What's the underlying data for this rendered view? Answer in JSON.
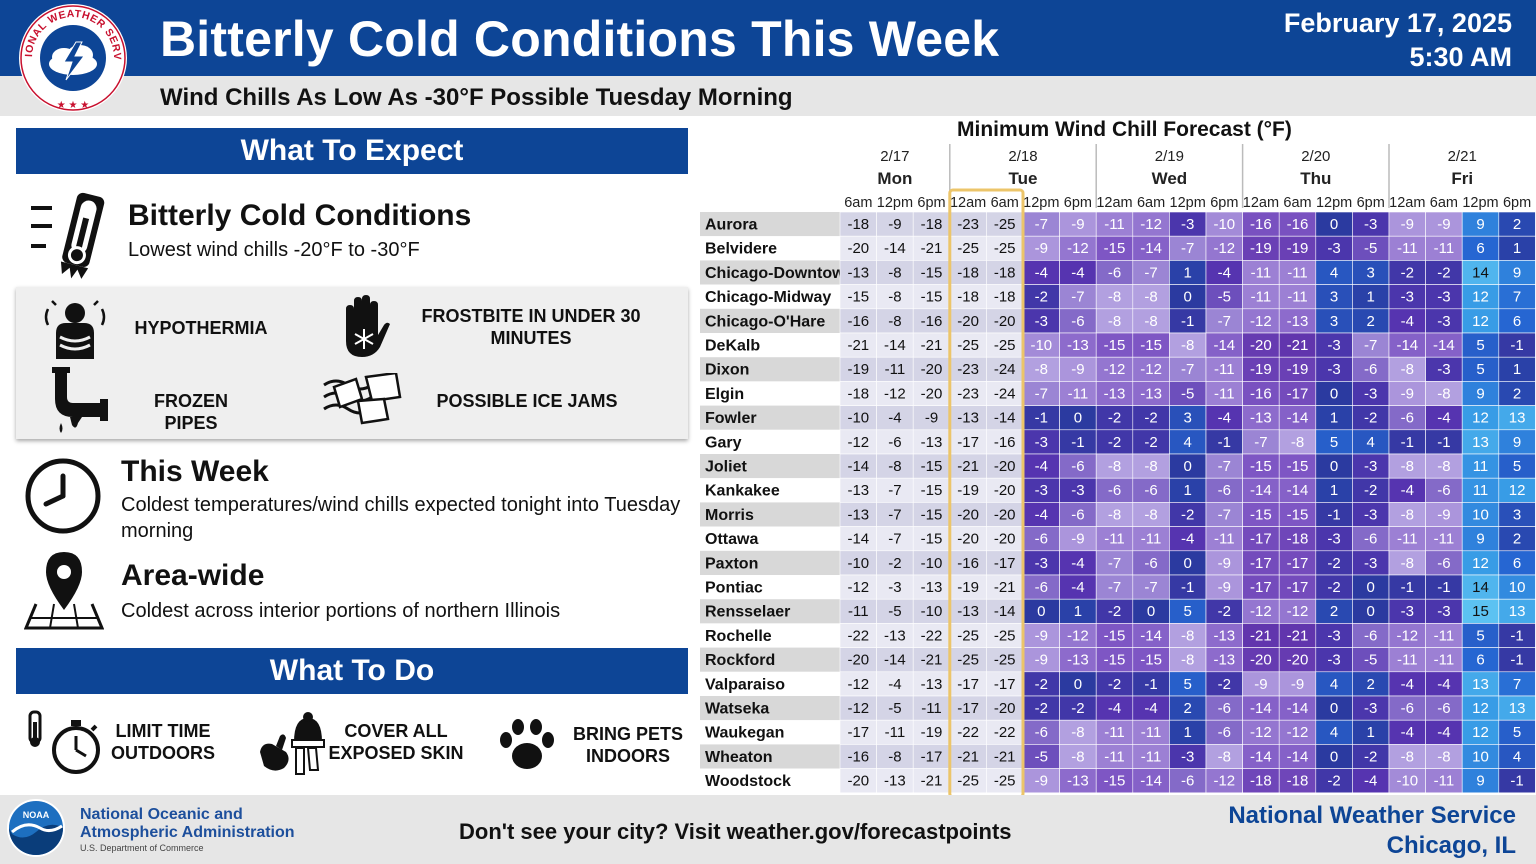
{
  "header": {
    "logo_text": "NATIONAL WEATHER SERVICE",
    "title": "Bitterly Cold Conditions This Week",
    "date": "February 17, 2025",
    "time": "5:30 AM",
    "subtitle": "Wind Chills As Low As -30°F Possible Tuesday Morning"
  },
  "expect": {
    "heading": "What To Expect",
    "main_title": "Bitterly Cold Conditions",
    "main_text": "Lowest wind chills -20°F to -30°F",
    "hazards": [
      {
        "label": "HYPOTHERMIA",
        "icon": "hypothermia-icon"
      },
      {
        "label": "FROSTBITE IN UNDER 30 MINUTES",
        "icon": "frostbite-hand-icon"
      },
      {
        "label": "FROZEN PIPES",
        "icon": "frozen-pipe-icon"
      },
      {
        "label": "POSSIBLE ICE JAMS",
        "icon": "ice-jam-icon"
      }
    ],
    "week_title": "This Week",
    "week_text": "Coldest temperatures/wind chills expected tonight into Tuesday morning",
    "area_title": "Area-wide",
    "area_text": "Coldest across interior portions of northern Illinois"
  },
  "todo": {
    "heading": "What To Do",
    "items": [
      {
        "label": "LIMIT TIME OUTDOORS",
        "icon": "stopwatch-icon"
      },
      {
        "label": "COVER ALL EXPOSED SKIN",
        "icon": "winter-clothing-icon"
      },
      {
        "label": "BRING PETS INDOORS",
        "icon": "paw-icon"
      }
    ]
  },
  "footer": {
    "noaa_line1": "National Oceanic and",
    "noaa_line2": "Atmospheric Administration",
    "noaa_sub": "U.S. Department of Commerce",
    "link_text": "Don't see your city? Visit weather.gov/forecastpoints",
    "office_line1": "National Weather Service",
    "office_line2": "Chicago, IL"
  },
  "colors": {
    "nws_blue": "#0d4596",
    "highlight": "#ecc56a"
  },
  "chart_data": {
    "type": "table",
    "title": "Minimum Wind Chill Forecast (°F)",
    "days": [
      {
        "date": "2/17",
        "day": "Mon",
        "times": [
          "6am",
          "12pm",
          "6pm"
        ]
      },
      {
        "date": "2/18",
        "day": "Tue",
        "times": [
          "12am",
          "6am",
          "12pm",
          "6pm"
        ]
      },
      {
        "date": "2/19",
        "day": "Wed",
        "times": [
          "12am",
          "6am",
          "12pm",
          "6pm"
        ]
      },
      {
        "date": "2/20",
        "day": "Thu",
        "times": [
          "12am",
          "6am",
          "12pm",
          "6pm"
        ]
      },
      {
        "date": "2/21",
        "day": "Fri",
        "times": [
          "12am",
          "6am",
          "12pm",
          "6pm"
        ]
      }
    ],
    "highlighted_columns": [
      "Tue 12am",
      "Tue 6am"
    ],
    "rows": [
      {
        "city": "Aurora",
        "values": [
          -18,
          -9,
          -18,
          -23,
          -25,
          -7,
          -9,
          -11,
          -12,
          -3,
          -10,
          -16,
          -16,
          0,
          -3,
          -9,
          -9,
          9,
          2
        ]
      },
      {
        "city": "Belvidere",
        "values": [
          -20,
          -14,
          -21,
          -25,
          -25,
          -9,
          -12,
          -15,
          -14,
          -7,
          -12,
          -19,
          -19,
          -3,
          -5,
          -11,
          -11,
          6,
          1
        ]
      },
      {
        "city": "Chicago-Downtown",
        "values": [
          -13,
          -8,
          -15,
          -18,
          -18,
          -4,
          -4,
          -6,
          -7,
          1,
          -4,
          -11,
          -11,
          4,
          3,
          -2,
          -2,
          14,
          9
        ]
      },
      {
        "city": "Chicago-Midway",
        "values": [
          -15,
          -8,
          -15,
          -18,
          -18,
          -2,
          -7,
          -8,
          -8,
          0,
          -5,
          -11,
          -11,
          3,
          1,
          -3,
          -3,
          12,
          7
        ]
      },
      {
        "city": "Chicago-O'Hare",
        "values": [
          -16,
          -8,
          -16,
          -20,
          -20,
          -3,
          -6,
          -8,
          -8,
          -1,
          -7,
          -12,
          -13,
          3,
          2,
          -4,
          -3,
          12,
          6
        ]
      },
      {
        "city": "DeKalb",
        "values": [
          -21,
          -14,
          -21,
          -25,
          -25,
          -10,
          -13,
          -15,
          -15,
          -8,
          -14,
          -20,
          -21,
          -3,
          -7,
          -14,
          -14,
          5,
          -1
        ]
      },
      {
        "city": "Dixon",
        "values": [
          -19,
          -11,
          -20,
          -23,
          -24,
          -8,
          -9,
          -12,
          -12,
          -7,
          -11,
          -19,
          -19,
          -3,
          -6,
          -8,
          -3,
          5,
          1
        ]
      },
      {
        "city": "Elgin",
        "values": [
          -18,
          -12,
          -20,
          -23,
          -24,
          -7,
          -11,
          -13,
          -13,
          -5,
          -11,
          -16,
          -17,
          0,
          -3,
          -9,
          -8,
          9,
          2
        ]
      },
      {
        "city": "Fowler",
        "values": [
          -10,
          -4,
          -9,
          -13,
          -14,
          -1,
          0,
          -2,
          -2,
          3,
          -4,
          -13,
          -14,
          1,
          -2,
          -6,
          -4,
          12,
          13
        ]
      },
      {
        "city": "Gary",
        "values": [
          -12,
          -6,
          -13,
          -17,
          -16,
          -3,
          -1,
          -2,
          -2,
          4,
          -1,
          -7,
          -8,
          5,
          4,
          -1,
          -1,
          13,
          9
        ]
      },
      {
        "city": "Joliet",
        "values": [
          -14,
          -8,
          -15,
          -21,
          -20,
          -4,
          -6,
          -8,
          -8,
          0,
          -7,
          -15,
          -15,
          0,
          -3,
          -8,
          -8,
          11,
          5
        ]
      },
      {
        "city": "Kankakee",
        "values": [
          -13,
          -7,
          -15,
          -19,
          -20,
          -3,
          -3,
          -6,
          -6,
          1,
          -6,
          -14,
          -14,
          1,
          -2,
          -4,
          -6,
          11,
          12
        ]
      },
      {
        "city": "Morris",
        "values": [
          -13,
          -7,
          -15,
          -20,
          -20,
          -4,
          -6,
          -8,
          -8,
          -2,
          -7,
          -15,
          -15,
          -1,
          -3,
          -8,
          -9,
          10,
          3
        ]
      },
      {
        "city": "Ottawa",
        "values": [
          -14,
          -7,
          -15,
          -20,
          -20,
          -6,
          -9,
          -11,
          -11,
          -4,
          -11,
          -17,
          -18,
          -3,
          -6,
          -11,
          -11,
          9,
          2
        ]
      },
      {
        "city": "Paxton",
        "values": [
          -10,
          -2,
          -10,
          -16,
          -17,
          -3,
          -4,
          -7,
          -6,
          0,
          -9,
          -17,
          -17,
          -2,
          -3,
          -8,
          -6,
          12,
          6
        ]
      },
      {
        "city": "Pontiac",
        "values": [
          -12,
          -3,
          -13,
          -19,
          -21,
          -6,
          -4,
          -7,
          -7,
          -1,
          -9,
          -17,
          -17,
          -2,
          0,
          -1,
          -1,
          14,
          10
        ]
      },
      {
        "city": "Rensselaer",
        "values": [
          -11,
          -5,
          -10,
          -13,
          -14,
          0,
          1,
          -2,
          0,
          5,
          -2,
          -12,
          -12,
          2,
          0,
          -3,
          -3,
          15,
          13
        ]
      },
      {
        "city": "Rochelle",
        "values": [
          -22,
          -13,
          -22,
          -25,
          -25,
          -9,
          -12,
          -15,
          -14,
          -8,
          -13,
          -21,
          -21,
          -3,
          -6,
          -12,
          -11,
          5,
          -1
        ]
      },
      {
        "city": "Rockford",
        "values": [
          -20,
          -14,
          -21,
          -25,
          -25,
          -9,
          -13,
          -15,
          -15,
          -8,
          -13,
          -20,
          -20,
          -3,
          -5,
          -11,
          -11,
          6,
          -1
        ]
      },
      {
        "city": "Valparaiso",
        "values": [
          -12,
          -4,
          -13,
          -17,
          -17,
          -2,
          0,
          -2,
          -1,
          5,
          -2,
          -9,
          -9,
          4,
          2,
          -4,
          -4,
          13,
          7
        ]
      },
      {
        "city": "Watseka",
        "values": [
          -12,
          -5,
          -11,
          -17,
          -20,
          -2,
          -2,
          -4,
          -4,
          2,
          -6,
          -14,
          -14,
          0,
          -3,
          -6,
          -6,
          12,
          13
        ]
      },
      {
        "city": "Waukegan",
        "values": [
          -17,
          -11,
          -19,
          -22,
          -22,
          -6,
          -8,
          -11,
          -11,
          1,
          -6,
          -12,
          -12,
          4,
          1,
          -4,
          -4,
          12,
          5
        ]
      },
      {
        "city": "Wheaton",
        "values": [
          -16,
          -8,
          -17,
          -21,
          -21,
          -5,
          -8,
          -11,
          -11,
          -3,
          -8,
          -14,
          -14,
          0,
          -2,
          -8,
          -8,
          10,
          4
        ]
      },
      {
        "city": "Woodstock",
        "values": [
          -20,
          -13,
          -21,
          -25,
          -25,
          -9,
          -13,
          -15,
          -14,
          -6,
          -12,
          -18,
          -18,
          -2,
          -4,
          -10,
          -11,
          9,
          -1
        ]
      }
    ]
  }
}
